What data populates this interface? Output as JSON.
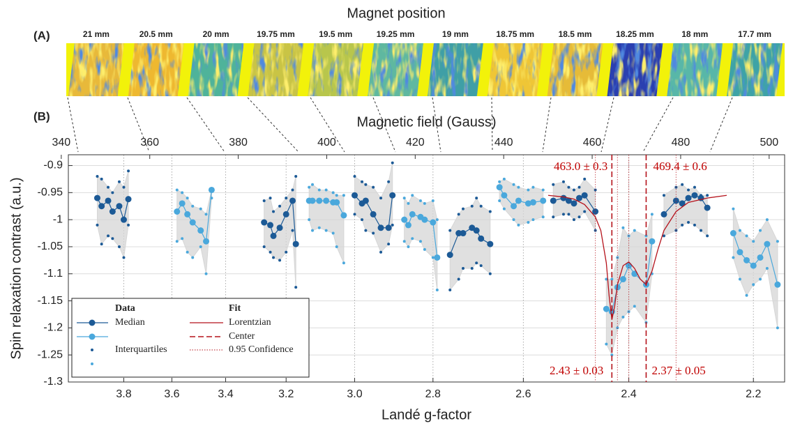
{
  "header": {
    "title": "Magnet position",
    "panel_a": "(A)",
    "panel_b": "(B)",
    "tiles": [
      "21 mm",
      "20.5 mm",
      "20 mm",
      "19.75 mm",
      "19.5 mm",
      "19.25 mm",
      "19 mm",
      "18.75 mm",
      "18.5 mm",
      "18.25 mm",
      "18 mm",
      "17.7 mm"
    ]
  },
  "chart_data": {
    "type": "line",
    "x2label": "Magnetic field (Gauss)",
    "xlabel": "Landé g-factor",
    "ylabel": "Spin relaxation contrast (a.u.)",
    "xscale": "reciprocal",
    "xlim": [
      4.06,
      2.155
    ],
    "xticks": [
      3.8,
      3.6,
      3.4,
      3.2,
      {
        "value": 3,
        "label": "3.0"
      },
      2.8,
      2.6,
      2.4,
      2.2
    ],
    "x2lim": [
      341.6,
      503.5
    ],
    "x2ticks": [
      340,
      360,
      380,
      400,
      420,
      440,
      460,
      480,
      500
    ],
    "ylim": [
      -1.3,
      -0.88
    ],
    "yticks": [
      -0.9,
      -0.95,
      -1,
      -1.05,
      -1.1,
      -1.15,
      -1.2,
      -1.25,
      -1.3
    ],
    "grid": true,
    "band_color": "#d6d6d6",
    "groups": [
      {
        "color": "#1c5a96",
        "x": [
          3.92,
          3.9,
          3.87,
          3.85,
          3.82,
          3.8,
          3.78
        ],
        "median": [
          -0.96,
          -0.975,
          -0.965,
          -0.985,
          -0.975,
          -1.0,
          -0.962
        ],
        "upper": [
          -0.92,
          -0.925,
          -0.94,
          -0.95,
          -0.93,
          -0.94,
          -0.91
        ],
        "lower": [
          -1.01,
          -1.045,
          -1.03,
          -1.035,
          -1.05,
          -1.07,
          -1.01
        ]
      },
      {
        "color": "#4aa8dc",
        "x": [
          3.58,
          3.56,
          3.54,
          3.52,
          3.49,
          3.47,
          3.45
        ],
        "median": [
          -0.985,
          -0.97,
          -0.99,
          -1.005,
          -1.02,
          -1.04,
          -0.945
        ],
        "upper": [
          -0.945,
          -0.95,
          -0.96,
          -0.975,
          -0.98,
          -0.99,
          -0.945
        ],
        "lower": [
          -1.04,
          -1.035,
          -1.06,
          -1.07,
          -1.05,
          -1.1,
          -0.96
        ]
      },
      {
        "color": "#1c5a96",
        "x": [
          3.27,
          3.25,
          3.24,
          3.22,
          3.2,
          3.18,
          3.17
        ],
        "median": [
          -1.005,
          -1.01,
          -1.03,
          -1.015,
          -0.99,
          -0.965,
          -1.045
        ],
        "upper": [
          -0.965,
          -0.96,
          -0.985,
          -0.975,
          -0.96,
          -0.945,
          -0.92
        ],
        "lower": [
          -1.05,
          -1.06,
          -1.07,
          -1.075,
          -1.06,
          -1.02,
          -1.125
        ]
      },
      {
        "color": "#4aa8dc",
        "x": [
          3.13,
          3.12,
          3.1,
          3.08,
          3.06,
          3.05,
          3.03
        ],
        "median": [
          -0.965,
          -0.965,
          -0.965,
          -0.965,
          -0.968,
          -0.968,
          -0.992
        ],
        "upper": [
          -0.94,
          -0.935,
          -0.945,
          -0.945,
          -0.95,
          -0.955,
          -0.955
        ],
        "lower": [
          -1.0,
          -1.02,
          -1.015,
          -1.02,
          -1.025,
          -1.05,
          -1.08
        ]
      },
      {
        "color": "#1c5a96",
        "x": [
          3.0,
          2.98,
          2.97,
          2.95,
          2.93,
          2.91,
          2.9
        ],
        "median": [
          -0.955,
          -0.97,
          -0.965,
          -0.99,
          -1.015,
          -1.015,
          -0.955
        ],
        "upper": [
          -0.92,
          -0.93,
          -0.935,
          -0.94,
          -0.96,
          -0.93,
          -0.895
        ],
        "lower": [
          -0.99,
          -1.0,
          -1.02,
          -1.025,
          -1.06,
          -1.045,
          -1.01
        ]
      },
      {
        "color": "#4aa8dc",
        "x": [
          2.87,
          2.86,
          2.85,
          2.83,
          2.82,
          2.8,
          2.79
        ],
        "median": [
          -1.0,
          -1.01,
          -0.99,
          -0.995,
          -1.0,
          -1.005,
          -1.07
        ],
        "upper": [
          -0.96,
          -0.97,
          -0.955,
          -0.965,
          -0.97,
          -0.965,
          -1.0
        ],
        "lower": [
          -1.04,
          -1.05,
          -1.035,
          -1.04,
          -1.055,
          -1.07,
          -1.13
        ]
      },
      {
        "color": "#1c5a96",
        "x": [
          2.76,
          2.74,
          2.73,
          2.71,
          2.7,
          2.69,
          2.67
        ],
        "median": [
          -1.065,
          -1.025,
          -1.025,
          -1.015,
          -1.02,
          -1.035,
          -1.045
        ],
        "upper": [
          -1.02,
          -0.99,
          -0.98,
          -0.975,
          -0.96,
          -0.975,
          -0.985
        ],
        "lower": [
          -1.13,
          -1.11,
          -1.09,
          -1.09,
          -1.08,
          -1.085,
          -1.1
        ]
      },
      {
        "color": "#4aa8dc",
        "x": [
          2.65,
          2.64,
          2.62,
          2.61,
          2.59,
          2.58,
          2.56
        ],
        "median": [
          -0.94,
          -0.955,
          -0.975,
          -0.965,
          -0.97,
          -0.968,
          -0.965
        ],
        "upper": [
          -0.93,
          -0.925,
          -0.935,
          -0.94,
          -0.945,
          -0.94,
          -0.945
        ],
        "lower": [
          -0.965,
          -0.98,
          -1.0,
          -1.01,
          -1.005,
          -1.0,
          -0.995
        ]
      },
      {
        "color": "#1c5a96",
        "x": [
          2.54,
          2.52,
          2.51,
          2.5,
          2.49,
          2.48,
          2.46
        ],
        "median": [
          -0.965,
          -0.96,
          -0.965,
          -0.97,
          -0.96,
          -0.955,
          -0.985
        ],
        "upper": [
          -0.935,
          -0.93,
          -0.94,
          -0.945,
          -0.94,
          -0.925,
          -0.945
        ],
        "lower": [
          -0.995,
          -0.99,
          -0.99,
          -1.0,
          -0.995,
          -0.985,
          -1.02
        ]
      },
      {
        "color": "#4aa8dc",
        "x": [
          2.44,
          2.43,
          2.42,
          2.41,
          2.4,
          2.39,
          2.37,
          2.36
        ],
        "median": [
          -1.165,
          -1.17,
          -1.125,
          -1.11,
          -1.085,
          -1.1,
          -1.12,
          -1.04
        ],
        "upper": [
          -1.11,
          -1.11,
          -1.07,
          -1.015,
          -1.03,
          -1.02,
          -1.03,
          -0.99
        ],
        "lower": [
          -1.23,
          -1.25,
          -1.2,
          -1.18,
          -1.17,
          -1.16,
          -1.19,
          -1.1
        ]
      },
      {
        "color": "#1c5a96",
        "x": [
          2.34,
          2.32,
          2.31,
          2.3,
          2.29,
          2.28,
          2.27
        ],
        "median": [
          -0.99,
          -0.965,
          -0.97,
          -0.96,
          -0.955,
          -0.96,
          -0.978
        ],
        "upper": [
          -0.955,
          -0.94,
          -0.935,
          -0.945,
          -0.94,
          -0.955,
          -0.955
        ],
        "lower": [
          -1.03,
          -1.02,
          -1.01,
          -1.005,
          -1.01,
          -1.02,
          -1.03
        ]
      },
      {
        "color": "#4aa8dc",
        "x": [
          2.23,
          2.22,
          2.21,
          2.2,
          2.19,
          2.18,
          2.165
        ],
        "median": [
          -1.025,
          -1.06,
          -1.075,
          -1.085,
          -1.07,
          -1.045,
          -1.12
        ],
        "upper": [
          -0.98,
          -1.02,
          -1.03,
          -1.04,
          -1.02,
          -1.0,
          -1.04
        ],
        "lower": [
          -1.07,
          -1.11,
          -1.14,
          -1.12,
          -1.11,
          -1.09,
          -1.2
        ]
      }
    ],
    "fit": {
      "color": "#b5121b",
      "x": [
        2.55,
        2.52,
        2.5,
        2.48,
        2.46,
        2.45,
        2.44,
        2.435,
        2.43,
        2.425,
        2.42,
        2.41,
        2.4,
        2.39,
        2.38,
        2.37,
        2.36,
        2.35,
        2.34,
        2.32,
        2.3,
        2.27,
        2.24
      ],
      "y": [
        -0.955,
        -0.958,
        -0.962,
        -0.972,
        -0.995,
        -1.02,
        -1.08,
        -1.14,
        -1.185,
        -1.16,
        -1.12,
        -1.085,
        -1.078,
        -1.09,
        -1.11,
        -1.12,
        -1.095,
        -1.055,
        -1.02,
        -0.985,
        -0.968,
        -0.96,
        -0.955
      ]
    },
    "centers": [
      {
        "value": 2.43,
        "error": 0.03,
        "label": "2.43 ± 0.03",
        "field_label": "463.0 ± 0.3"
      },
      {
        "value": 2.37,
        "error": 0.05,
        "label": "2.37 ± 0.05",
        "field_label": "469.4 ± 0.6"
      }
    ],
    "legend": {
      "data_title": "Data",
      "fit_title": "Fit",
      "median": "Median",
      "interquartiles": "Interquartiles",
      "fit": "Lorentzian",
      "center": "Center",
      "confidence": "0.95 Confidence"
    }
  }
}
